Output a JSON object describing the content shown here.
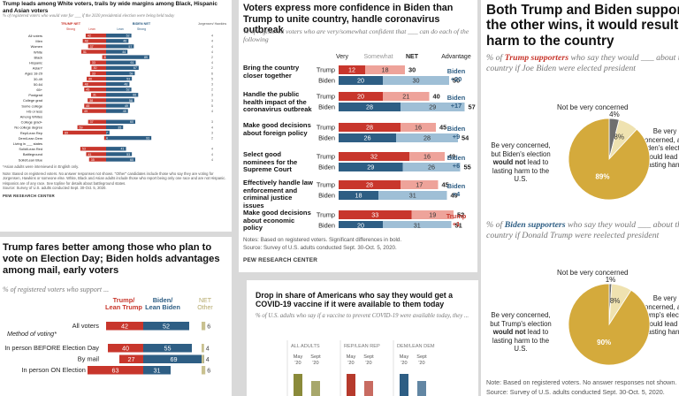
{
  "card1": {
    "title": "Trump leads among White voters, trails by wide margins among Black, Hispanic and Asian voters",
    "subtitle": "% of registered voters who would vote for ___ if the 2020 presidential election were being held today",
    "col_trump": "TRUMP NET",
    "col_biden": "BIDEN NET",
    "col_jorg": "Jorgensen/ Hawkins",
    "sub_lean": "Lean",
    "sub_strong": "Strong",
    "rows": [
      {
        "label": "All voters",
        "t": 42,
        "b": 52,
        "j": "4"
      },
      {
        "label": "Men",
        "t": 48,
        "b": 46,
        "j": "4"
      },
      {
        "label": "Women",
        "t": 37,
        "b": 57,
        "j": "4"
      },
      {
        "label": "White",
        "t": 51,
        "b": 44,
        "j": "4"
      },
      {
        "label": "Black",
        "t": 8,
        "b": 89,
        "j": "2"
      },
      {
        "label": "Hispanic",
        "t": 33,
        "b": 61,
        "j": "4"
      },
      {
        "label": "Asian*",
        "t": 30,
        "b": 67,
        "j": "2"
      },
      {
        "label": "Ages 18-29",
        "t": 33,
        "b": 59,
        "j": "6"
      },
      {
        "label": "30-49",
        "t": 40,
        "b": 53,
        "j": "5"
      },
      {
        "label": "50-64",
        "t": 48,
        "b": 48,
        "j": "3"
      },
      {
        "label": "65+",
        "t": 45,
        "b": 52,
        "j": "2"
      },
      {
        "label": "Postgrad",
        "t": 31,
        "b": 66,
        "j": "3"
      },
      {
        "label": "College grad",
        "t": 38,
        "b": 58,
        "j": "3"
      },
      {
        "label": "Some college",
        "t": 45,
        "b": 49,
        "j": "5"
      },
      {
        "label": "HS or less",
        "t": 49,
        "b": 45,
        "j": "4"
      },
      {
        "label": "Among Whites",
        "t": null,
        "b": null,
        "j": ""
      },
      {
        "label": "College grad+",
        "t": 37,
        "b": 60,
        "j": "3"
      },
      {
        "label": "No college degree",
        "t": 59,
        "b": 35,
        "j": "4"
      },
      {
        "label": "Rep/Lean Rep",
        "t": 89,
        "b": 7,
        "j": "3"
      },
      {
        "label": "Dem/Lean Dem",
        "t": 4,
        "b": 93,
        "j": "2"
      },
      {
        "label": "Living in ___ states",
        "t": null,
        "b": null,
        "j": ""
      },
      {
        "label": "Solid/Lean Red",
        "t": 53,
        "b": 41,
        "j": "4"
      },
      {
        "label": "Battleground",
        "t": 41,
        "b": 53,
        "j": "4"
      },
      {
        "label": "Solid/Lean Blue",
        "t": 35,
        "b": 60,
        "j": "4"
      }
    ],
    "notes": "*Asian adults were interviewed in English only.",
    "notes2": "Note: Based on registered voters. No answer responses not shown. \"Other\" candidates include those who say they are voting for Jorgensen, Hawkins or someone else. White, Black and Asian adults include those who report being only one race and are not Hispanic. Hispanics are of any race. See topline for details about battleground states.",
    "source": "Source: Survey of U.S. adults conducted Sept. 30-Oct. 5, 2020.",
    "brand": "PEW RESEARCH CENTER"
  },
  "card2": {
    "title": "Trump fares better among those who plan to vote on Election Day; Biden holds advantages among mail, early voters",
    "subtitle": "% of registered voters who support ...",
    "col_trump": "Trump/ Lean Trump",
    "col_biden": "Biden/ Lean Biden",
    "col_net": "NET Other",
    "section": "Method of voting*",
    "chart_data": {
      "type": "bar",
      "categories": [
        "All voters",
        "In person BEFORE Election Day",
        "By mail",
        "In person ON Election Day"
      ],
      "series": [
        {
          "name": "Trump/Lean Trump",
          "values": [
            42,
            40,
            27,
            63
          ]
        },
        {
          "name": "Biden/Lean Biden",
          "values": [
            52,
            55,
            69,
            31
          ]
        },
        {
          "name": "NET Other",
          "values": [
            6,
            4,
            4,
            6
          ]
        }
      ],
      "colors": {
        "trump": "#c8362c",
        "biden": "#2e5e84",
        "other": "#c9c190"
      }
    }
  },
  "card3": {
    "title": "Voters express more confidence in Biden than Trump to unite country, handle coronavirus outbreak",
    "subtitle": "% of registered voters who are very/somewhat confident that ___ can do each of the following",
    "legend_very": "Very",
    "legend_somewhat": "Somewhat",
    "legend_net": "NET",
    "col_adv": "Advantage",
    "chart_data": {
      "type": "bar",
      "items": [
        {
          "label": "Bring the country closer together",
          "trump": [
            12,
            18,
            30
          ],
          "biden": [
            20,
            30,
            50
          ],
          "adv": "Biden +20",
          "adv_party": "biden"
        },
        {
          "label": "Handle the public health impact of the coronavirus outbreak",
          "trump": [
            20,
            21,
            40
          ],
          "biden": [
            28,
            29,
            57
          ],
          "adv": "Biden +17",
          "adv_party": "biden"
        },
        {
          "label": "Make good decisions about foreign policy",
          "trump": [
            28,
            16,
            45
          ],
          "biden": [
            26,
            28,
            54
          ],
          "adv": "Biden +9",
          "adv_party": "biden"
        },
        {
          "label": "Select good nominees for the Supreme Court",
          "trump": [
            32,
            16,
            49
          ],
          "biden": [
            29,
            26,
            55
          ],
          "adv": "Biden +6",
          "adv_party": "biden"
        },
        {
          "label": "Effectively handle law enforcement and criminal justice issues",
          "trump": [
            28,
            17,
            45
          ],
          "biden": [
            18,
            31,
            49
          ],
          "adv": "Biden +4",
          "adv_party": "biden"
        },
        {
          "label": "Make good decisions about economic policy",
          "trump": [
            33,
            19,
            52
          ],
          "biden": [
            20,
            31,
            51
          ],
          "adv": "Trump +1",
          "adv_party": "trump"
        }
      ]
    },
    "name_trump": "Trump",
    "name_biden": "Biden",
    "note": "Notes: Based on registered voters. Significant differences in bold.",
    "source": "Source: Survey of U.S. adults conducted Sept. 30-Oct. 5, 2020.",
    "brand": "PEW RESEARCH CENTER"
  },
  "card4": {
    "title": "Drop in share of Americans who say they would get a COVID-19 vaccine if it were available to them today",
    "subtitle": "% of U.S. adults who say if a vaccine to prevent COVID-19 were available today, they ...",
    "groups": [
      "ALL ADULTS",
      "REP/LEAN REP",
      "DEM/LEAN DEM"
    ],
    "ticks": [
      "May '20",
      "Sept '20"
    ],
    "colors": {
      "all": "#8a8a3a",
      "rep": "#b63a2c",
      "dem": "#2e5e84"
    }
  },
  "card5": {
    "title": "Both Trump and Biden supporters say if the other wins, it would result in lasting harm to the country",
    "sub1_pre": "% of ",
    "sub1_hl": "Trump supporters",
    "sub1_post": " who say they would ___ about the direction of the country if Joe Biden were elected president",
    "sub2_pre": "% of ",
    "sub2_hl": "Biden supporters",
    "sub2_post": " who say they would ___ about the direction of the country if Donald Trump were reelected president",
    "pie_top_label": "Not be very concerned",
    "left_pre": "Be very concerned, but Biden's election ",
    "left_bold": "would not",
    "left_post": " lead to lasting harm to the U.S.",
    "right_pre": "Be very concerned, and Biden's election would lead to lasting harm",
    "left2_pre": "Be very concerned, but Trump's election ",
    "left2_bold": "would not",
    "left2_post": " lead to lasting harm to the U.S.",
    "right2_pre": "Be very concerned, and Trump's election would lead to lasting harm",
    "chart_data": [
      {
        "type": "pie",
        "labels": [
          "Not be very concerned",
          "Be very concerned, but election would not lead to lasting harm",
          "Be very concerned, and election would lead to lasting harm"
        ],
        "values": [
          4,
          8,
          89
        ],
        "value_labels": [
          "4%",
          "8%",
          "89%"
        ]
      },
      {
        "type": "pie",
        "labels": [
          "Not be very concerned",
          "Be very concerned, but election would not lead to lasting harm",
          "Be very concerned, and election would lead to lasting harm"
        ],
        "values": [
          1,
          8,
          90
        ],
        "value_labels": [
          "1%",
          "8%",
          "90%"
        ]
      }
    ],
    "colors": {
      "harm": "#d4aa3c",
      "not_harm": "#efe2b0",
      "not_conc": "#6f6f6f"
    },
    "note": "Note: Based on registered voters. No answer responses not shown.",
    "source": "Source: Survey of U.S. adults conducted Sept. 30-Oct. 5, 2020."
  }
}
